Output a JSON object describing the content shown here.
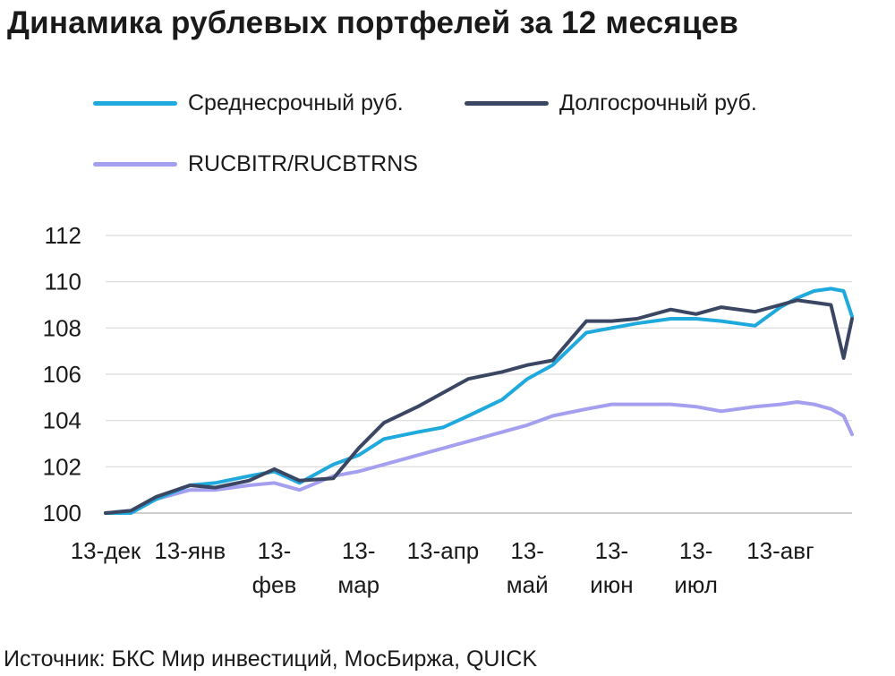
{
  "chart_data": {
    "type": "line",
    "title": "Динамика рублевых портфелей за 12 месяцев",
    "source": "Источник: БКС Мир инвестиций, МосБиржа, QUICK",
    "ylim": [
      100,
      112
    ],
    "yticks": [
      "100",
      "102",
      "104",
      "106",
      "108",
      "110",
      "112"
    ],
    "xticks": [
      {
        "lines": [
          "13-дек"
        ]
      },
      {
        "lines": [
          "13-янв"
        ]
      },
      {
        "lines": [
          "13-",
          "фев"
        ]
      },
      {
        "lines": [
          "13-",
          "мар"
        ]
      },
      {
        "lines": [
          "13-апр"
        ]
      },
      {
        "lines": [
          "13-",
          "май"
        ]
      },
      {
        "lines": [
          "13-",
          "июн"
        ]
      },
      {
        "lines": [
          "13-",
          "июл"
        ]
      },
      {
        "lines": [
          "13-авг"
        ]
      }
    ],
    "grid": true,
    "legend_position": "top",
    "x_months_from_13_dec": [
      0,
      0.3,
      0.6,
      1.0,
      1.3,
      1.7,
      2.0,
      2.3,
      2.7,
      3.0,
      3.3,
      3.7,
      4.0,
      4.3,
      4.7,
      5.0,
      5.3,
      5.7,
      6.0,
      6.3,
      6.7,
      7.0,
      7.3,
      7.7,
      8.0,
      8.2,
      8.4,
      8.6,
      8.75,
      8.85
    ],
    "series": [
      {
        "name": "Среднесрочный руб.",
        "color": "#1fa9dd",
        "values": [
          100,
          100.0,
          100.6,
          101.2,
          101.3,
          101.6,
          101.8,
          101.3,
          102.1,
          102.5,
          103.2,
          103.5,
          103.7,
          104.2,
          104.9,
          105.8,
          106.4,
          107.8,
          108.0,
          108.2,
          108.4,
          108.4,
          108.3,
          108.1,
          108.9,
          109.3,
          109.6,
          109.7,
          109.6,
          108.5
        ]
      },
      {
        "name": "Долгосрочный руб.",
        "color": "#3a4662",
        "values": [
          100,
          100.1,
          100.7,
          101.2,
          101.1,
          101.4,
          101.9,
          101.4,
          101.5,
          102.8,
          103.9,
          104.6,
          105.2,
          105.8,
          106.1,
          106.4,
          106.6,
          108.3,
          108.3,
          108.4,
          108.8,
          108.6,
          108.9,
          108.7,
          109.0,
          109.2,
          109.1,
          109.0,
          106.7,
          108.4
        ]
      },
      {
        "name": "RUCBITR/RUCBTRNS",
        "color": "#a59ff0",
        "values": [
          100,
          100.1,
          100.6,
          101.0,
          101.0,
          101.2,
          101.3,
          101.0,
          101.6,
          101.8,
          102.1,
          102.5,
          102.8,
          103.1,
          103.5,
          103.8,
          104.2,
          104.5,
          104.7,
          104.7,
          104.7,
          104.6,
          104.4,
          104.6,
          104.7,
          104.8,
          104.7,
          104.5,
          104.2,
          103.4
        ]
      }
    ]
  }
}
